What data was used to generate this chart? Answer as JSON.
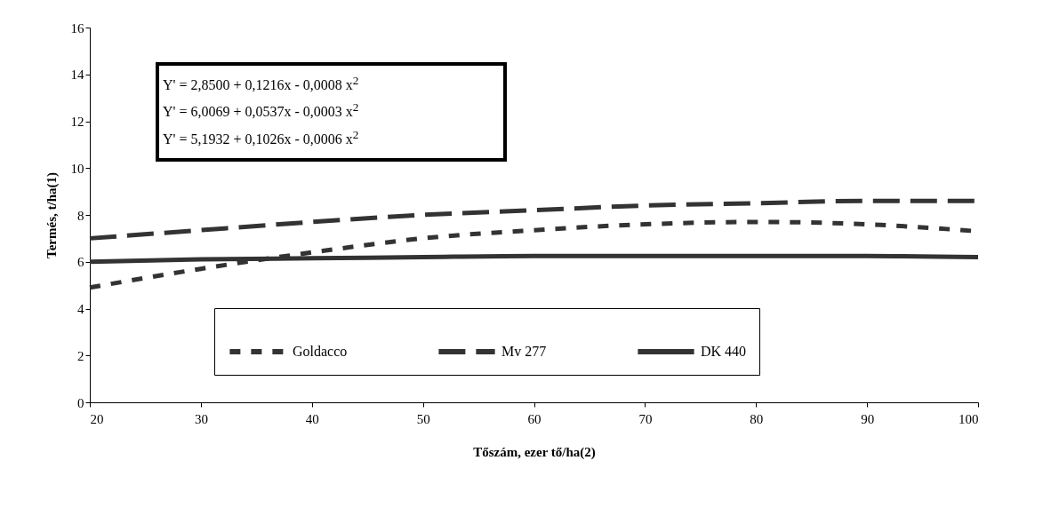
{
  "chart_data": {
    "type": "line",
    "xlabel": "Tőszám, ezer tő/ha(2)",
    "ylabel": "Termés, t/ha(1)",
    "x": [
      20,
      30,
      40,
      50,
      60,
      70,
      80,
      90,
      100
    ],
    "series": [
      {
        "name": "Goldacco",
        "color": "#333333",
        "line_style": "dotted",
        "values": [
          4.9,
          5.7,
          6.4,
          7.0,
          7.35,
          7.6,
          7.7,
          7.6,
          7.3
        ]
      },
      {
        "name": "Mv 277",
        "color": "#333333",
        "line_style": "dashed",
        "values": [
          7.0,
          7.35,
          7.7,
          8.0,
          8.2,
          8.4,
          8.5,
          8.6,
          8.6
        ]
      },
      {
        "name": "DK 440",
        "color": "#333333",
        "line_style": "solid",
        "values": [
          6.0,
          6.1,
          6.15,
          6.2,
          6.25,
          6.25,
          6.25,
          6.25,
          6.2
        ]
      }
    ],
    "xlim": [
      20,
      100
    ],
    "xticks": [
      20,
      30,
      40,
      50,
      60,
      70,
      80,
      90,
      100
    ],
    "ylim": [
      0,
      16
    ],
    "yticks": [
      0,
      2,
      4,
      6,
      8,
      10,
      12,
      14,
      16
    ],
    "grid": false,
    "legend": "bottom",
    "marker": "none",
    "annotations": [
      "Y' = 2,8500 + 0,1216x - 0,0008 x$^{2}$",
      "Y' = 6,0069 + 0,0537x - 0,0003 x$^{2}$",
      "Y' = 5,1932 + 0,1026x - 0,0006 x$^{2}$"
    ]
  }
}
